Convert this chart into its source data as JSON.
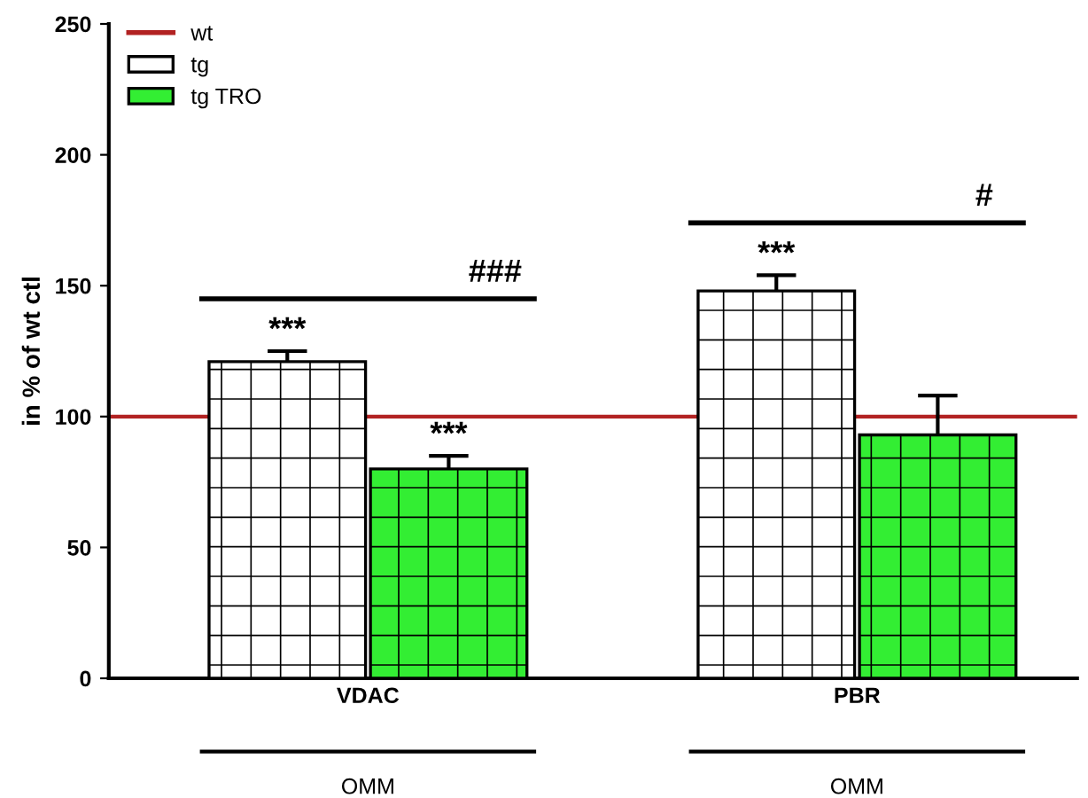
{
  "chart_data": {
    "type": "bar",
    "ylabel": "in % of wt ctl",
    "categories": [
      "VDAC",
      "PBR"
    ],
    "series": [
      {
        "name": "tg",
        "color": "#ffffff",
        "values": [
          121,
          148
        ],
        "errors": [
          4,
          6
        ]
      },
      {
        "name": "tg TRO",
        "color": "#33ee33",
        "values": [
          80,
          93
        ],
        "errors": [
          5,
          15
        ]
      }
    ],
    "ylim": [
      0,
      250
    ],
    "yticks": [
      0,
      50,
      100,
      150,
      200,
      250
    ],
    "ref_lines": [
      {
        "axis": "y",
        "value": 100,
        "label": "wt",
        "color": "#b22222"
      }
    ],
    "annotations": [
      "***",
      "***",
      "***",
      "###",
      "#",
      "OMM",
      "OMM"
    ],
    "legend": "top left",
    "grid": false
  }
}
